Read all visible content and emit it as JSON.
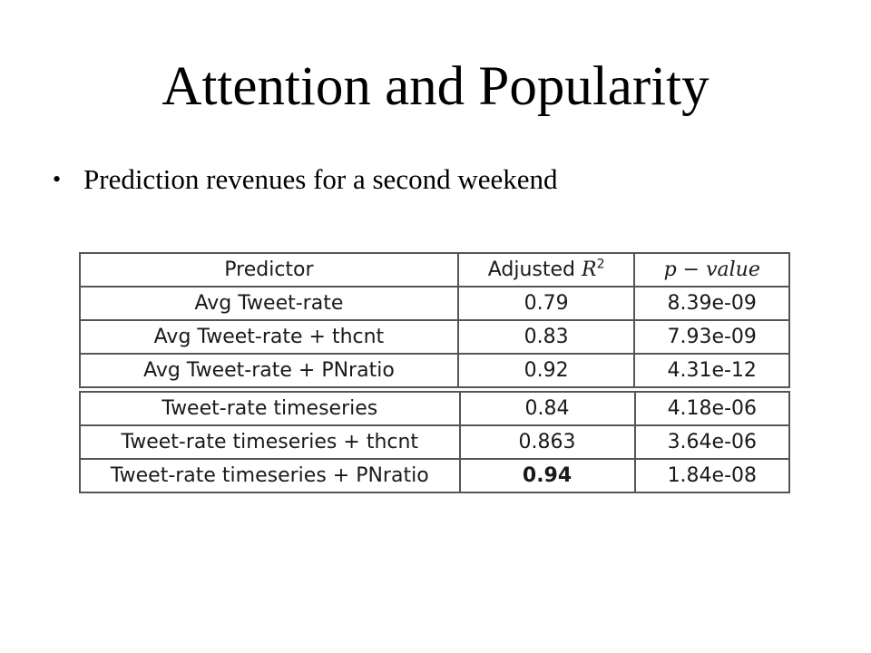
{
  "slide": {
    "title": "Attention and Popularity",
    "bullet": "Prediction revenues for a second weekend"
  },
  "table": {
    "headers": {
      "predictor": "Predictor",
      "adjusted_prefix": "Adjusted",
      "adjusted_symbol": "R",
      "adjusted_exponent": "2",
      "pvalue": "p − value"
    },
    "rows": [
      {
        "predictor": "Avg Tweet-rate",
        "adjusted_r2": "0.79",
        "p_value": "8.39e-09"
      },
      {
        "predictor": "Avg Tweet-rate + thcnt",
        "adjusted_r2": "0.83",
        "p_value": "7.93e-09"
      },
      {
        "predictor": "Avg Tweet-rate + PNratio",
        "adjusted_r2": "0.92",
        "p_value": "4.31e-12"
      },
      {
        "predictor": "Tweet-rate timeseries",
        "adjusted_r2": "0.84",
        "p_value": "4.18e-06"
      },
      {
        "predictor": "Tweet-rate timeseries + thcnt",
        "adjusted_r2": "0.863",
        "p_value": "3.64e-06"
      },
      {
        "predictor": "Tweet-rate timeseries + PNratio",
        "adjusted_r2": "0.94",
        "p_value": "1.84e-08"
      }
    ]
  }
}
